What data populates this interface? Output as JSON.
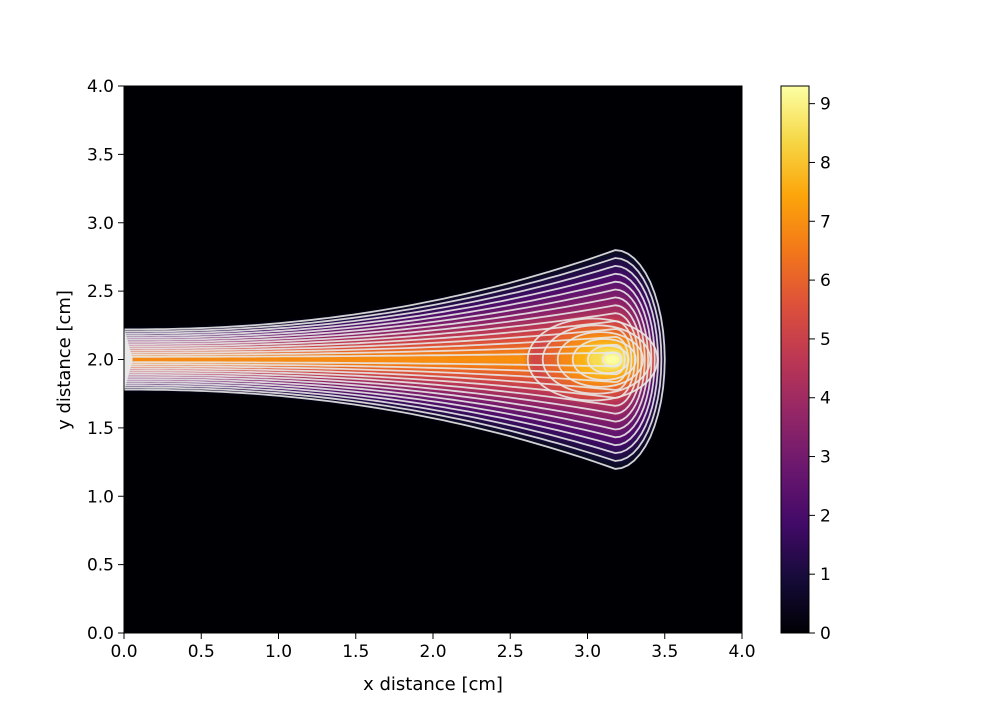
{
  "chart_data": {
    "type": "heatmap",
    "title": "",
    "xlabel": "x distance [cm]",
    "ylabel": "y distance [cm]",
    "xlim": [
      0.0,
      4.0
    ],
    "ylim": [
      0.0,
      4.0
    ],
    "x_ticks": [
      "0.0",
      "0.5",
      "1.0",
      "1.5",
      "2.0",
      "2.5",
      "3.0",
      "3.5",
      "4.0"
    ],
    "y_ticks": [
      "0.0",
      "0.5",
      "1.0",
      "1.5",
      "2.0",
      "2.5",
      "3.0",
      "3.5",
      "4.0"
    ],
    "colormap": "inferno",
    "grid": false,
    "colorbar": {
      "range": [
        0,
        9.3
      ],
      "ticks": [
        "0",
        "1",
        "2",
        "3",
        "4",
        "5",
        "6",
        "7",
        "8",
        "9"
      ]
    },
    "contour_lines": true,
    "contour_color": "#e8e8e8",
    "field_summary": {
      "plume_origin": [
        0.0,
        2.0
      ],
      "peak_value": 9.3,
      "peak_location": [
        3.18,
        2.0
      ],
      "core_value_near_origin": 7.0,
      "outer_extent_x": [
        0.0,
        3.5
      ],
      "outer_extent_y": [
        1.2,
        2.8
      ]
    }
  }
}
